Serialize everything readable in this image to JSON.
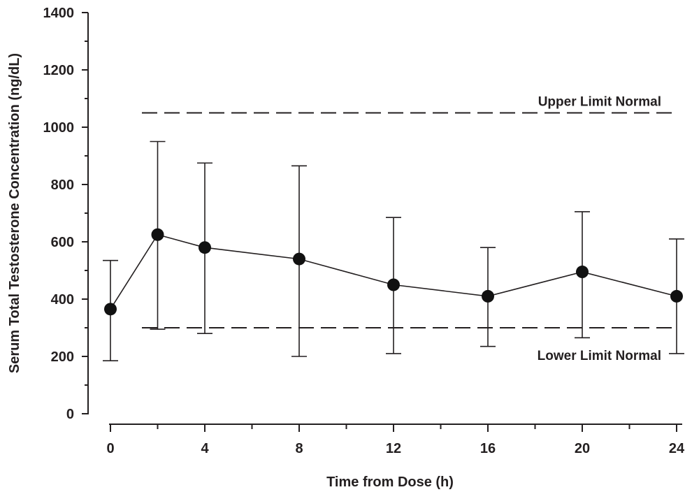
{
  "chart_data": {
    "type": "line",
    "title": "",
    "xlabel": "Time from Dose (h)",
    "ylabel": "Serum Total Testosterone Concentration (ng/dL)",
    "xlim": [
      0,
      24
    ],
    "ylim": [
      0,
      1400
    ],
    "x_ticks": [
      0,
      4,
      8,
      12,
      16,
      20,
      24
    ],
    "y_ticks": [
      0,
      200,
      400,
      600,
      800,
      1000,
      1200,
      1400
    ],
    "series": [
      {
        "x": [
          0,
          2,
          4,
          8,
          12,
          16,
          20,
          24
        ],
        "y": [
          365,
          625,
          580,
          540,
          450,
          410,
          495,
          410
        ],
        "error_low": [
          185,
          295,
          280,
          200,
          210,
          235,
          265,
          210
        ],
        "error_high": [
          535,
          950,
          875,
          865,
          685,
          580,
          705,
          610
        ],
        "color": "#111111"
      }
    ],
    "reference_lines": [
      {
        "label": "Upper Limit Normal",
        "y": 1050
      },
      {
        "label": "Lower Limit Normal",
        "y": 300
      }
    ],
    "grid": false,
    "legend": "none"
  }
}
